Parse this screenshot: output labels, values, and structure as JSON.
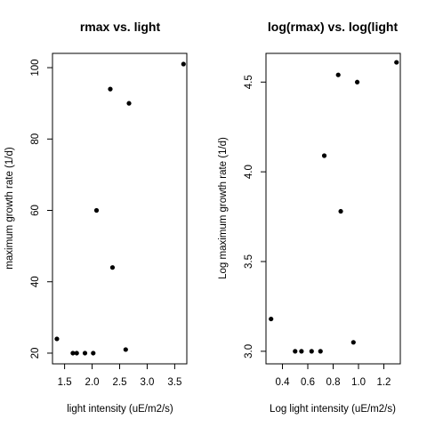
{
  "chart_data": [
    {
      "type": "scatter",
      "title": "rmax vs. light",
      "xlabel": "light intensity (uE/m2/s)",
      "ylabel": "maximum growth rate (1/d)",
      "xlim": [
        1.28,
        3.72
      ],
      "ylim": [
        17,
        104
      ],
      "xticks": [
        1.5,
        2.0,
        2.5,
        3.0,
        3.5
      ],
      "xtick_labels": [
        "1.5",
        "2.0",
        "2.5",
        "3.0",
        "3.5"
      ],
      "yticks": [
        20,
        40,
        60,
        80,
        100
      ],
      "ytick_labels": [
        "20",
        "40",
        "60",
        "80",
        "100"
      ],
      "grid": false,
      "legend": "none",
      "points": [
        {
          "x": 1.36,
          "y": 24
        },
        {
          "x": 1.65,
          "y": 20
        },
        {
          "x": 1.72,
          "y": 20
        },
        {
          "x": 1.87,
          "y": 20
        },
        {
          "x": 2.02,
          "y": 20
        },
        {
          "x": 2.08,
          "y": 60
        },
        {
          "x": 2.33,
          "y": 94
        },
        {
          "x": 2.37,
          "y": 44
        },
        {
          "x": 2.61,
          "y": 21
        },
        {
          "x": 2.67,
          "y": 90
        },
        {
          "x": 3.66,
          "y": 101
        }
      ]
    },
    {
      "type": "scatter",
      "title": "log(rmax) vs. log(light",
      "xlabel": "Log light intensity (uE/m2/s)",
      "ylabel": "Log maximum growth rate (1/d)",
      "xlim": [
        0.27,
        1.33
      ],
      "ylim": [
        2.93,
        4.66
      ],
      "xticks": [
        0.4,
        0.6,
        0.8,
        1.0,
        1.2
      ],
      "xtick_labels": [
        "0.4",
        "0.6",
        "0.8",
        "1.0",
        "1.2"
      ],
      "yticks": [
        3.0,
        3.5,
        4.0,
        4.5
      ],
      "ytick_labels": [
        "3.0",
        "3.5",
        "4.0",
        "4.5"
      ],
      "grid": false,
      "legend": "none",
      "points": [
        {
          "x": 0.31,
          "y": 3.18
        },
        {
          "x": 0.5,
          "y": 3.0
        },
        {
          "x": 0.55,
          "y": 3.0
        },
        {
          "x": 0.63,
          "y": 3.0
        },
        {
          "x": 0.7,
          "y": 3.0
        },
        {
          "x": 0.73,
          "y": 4.09
        },
        {
          "x": 0.84,
          "y": 4.54
        },
        {
          "x": 0.86,
          "y": 3.78
        },
        {
          "x": 0.96,
          "y": 3.05
        },
        {
          "x": 0.99,
          "y": 4.5
        },
        {
          "x": 1.3,
          "y": 4.61
        }
      ]
    }
  ]
}
